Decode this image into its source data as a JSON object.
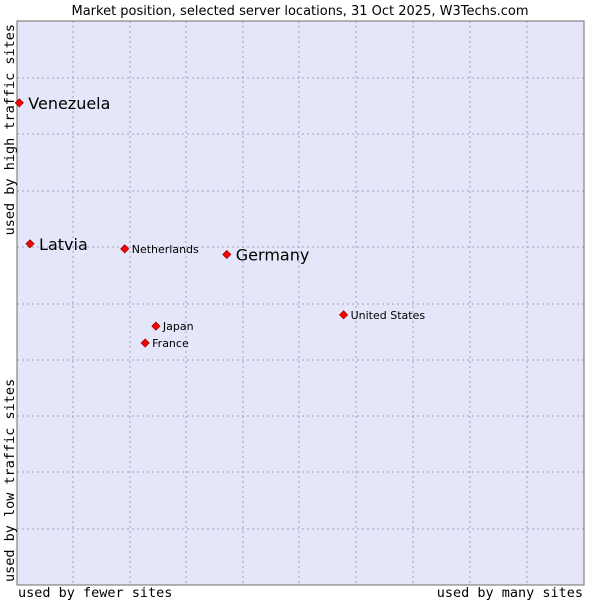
{
  "chart_data": {
    "type": "scatter",
    "title": "Market position, selected server locations, 31 Oct 2025, W3Techs.com",
    "xlabel_left": "used by fewer sites",
    "xlabel_right": "used by many sites",
    "ylabel_bottom": "used by low traffic sites",
    "ylabel_top": "used by high traffic sites",
    "xlim": [
      0,
      100
    ],
    "ylim": [
      0,
      100
    ],
    "grid": true,
    "points": [
      {
        "name": "Venezuela",
        "x": 0.4,
        "y": 85.5,
        "size": "large"
      },
      {
        "name": "Latvia",
        "x": 2.3,
        "y": 60.5,
        "size": "large"
      },
      {
        "name": "Netherlands",
        "x": 19.0,
        "y": 59.6,
        "size": "small"
      },
      {
        "name": "Germany",
        "x": 37.0,
        "y": 58.6,
        "size": "large"
      },
      {
        "name": "United States",
        "x": 57.6,
        "y": 47.9,
        "size": "small"
      },
      {
        "name": "Japan",
        "x": 24.5,
        "y": 45.9,
        "size": "small"
      },
      {
        "name": "France",
        "x": 22.6,
        "y": 42.9,
        "size": "small"
      }
    ],
    "colors": {
      "plot_background": "#e6e6fa",
      "grid": "#a0a0b8",
      "frame": "#6e6e6e",
      "point_fill": "#ff0000",
      "point_stroke": "#a00000"
    }
  }
}
